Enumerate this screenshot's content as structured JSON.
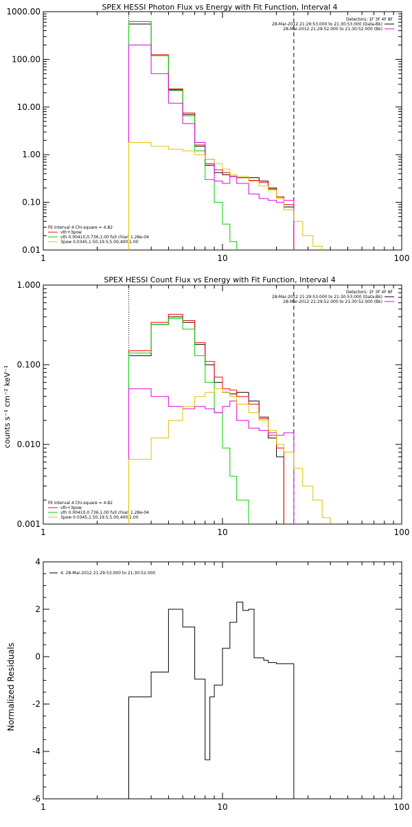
{
  "colors": {
    "black": "#000000",
    "red": "#ff0000",
    "green": "#00d000",
    "magenta": "#e000e0",
    "yellow": "#e0c000",
    "orange": "#ff8000"
  },
  "chart_data": [
    {
      "type": "line",
      "step": true,
      "title": "SPEX HESSI Photon Flux vs Energy with Fit Function, Interval 4",
      "xscale": "log",
      "yscale": "log",
      "xlim": [
        1,
        100
      ],
      "ylim": [
        0.01,
        1000
      ],
      "xticks": [
        {
          "v": 1,
          "label": "1"
        },
        {
          "v": 10,
          "label": "10"
        },
        {
          "v": 100,
          "label": "100"
        }
      ],
      "yticks": [
        {
          "v": 0.01,
          "label": "0.01"
        },
        {
          "v": 0.1,
          "label": "0.10"
        },
        {
          "v": 1,
          "label": "1.00"
        },
        {
          "v": 10,
          "label": "10.00"
        },
        {
          "v": 100,
          "label": "100.00"
        },
        {
          "v": 1000,
          "label": "1000.00"
        }
      ],
      "vlines": [
        {
          "x": 3,
          "style": "dotted"
        },
        {
          "x": 25,
          "style": "dashed"
        }
      ],
      "edges": [
        3,
        4,
        5,
        6,
        7,
        8,
        9,
        10,
        11,
        12,
        14,
        16,
        18,
        20,
        22,
        25,
        28,
        32,
        36,
        40
      ],
      "top_legend": {
        "header": "Detectors: 1F 3F 4F 8F",
        "entries": [
          {
            "text": "28-Mar-2012 21:29:53.000 to 21:30:53.000 (Data-Bk)",
            "color": "#000000"
          },
          {
            "text": "28-Mar-2012 21:29:52.000 to 21:30:52.000 (Bk)",
            "color": "#e000e0"
          }
        ]
      },
      "bottom_legend": {
        "header": "Fit Interval 4   Chi-square = 4.82",
        "entries": [
          {
            "text": "vth+3pow",
            "color": "#ff0000"
          },
          {
            "text": "vth 0.00410,0.736,1.00   full chian 1.28e-04",
            "color": "#00d000"
          },
          {
            "text": "3pow 0.0345,1.50,19.5,5.00,400,1.00",
            "color": "#e0c000"
          }
        ]
      },
      "series": [
        {
          "color": "#000000",
          "values": [
            550,
            120,
            23,
            7,
            1.5,
            0.6,
            0.42,
            0.38,
            0.35,
            0.33,
            0.33,
            0.28,
            0.2,
            0.13,
            0.08,
            null,
            null,
            null,
            null
          ]
        },
        {
          "color": "#ff0000",
          "values": [
            620,
            125,
            24,
            7.5,
            1.6,
            0.65,
            0.48,
            0.42,
            0.35,
            0.33,
            0.29,
            0.26,
            0.19,
            0.13,
            0.09,
            null,
            null,
            null,
            null
          ]
        },
        {
          "color": "#00d000",
          "values": [
            620,
            120,
            22,
            6.5,
            1.2,
            0.3,
            0.1,
            0.035,
            0.015,
            null,
            null,
            null,
            null,
            null,
            null,
            null,
            null,
            null,
            null
          ]
        },
        {
          "color": "#e000e0",
          "values": [
            200,
            50,
            12,
            4.5,
            1.8,
            0.8,
            0.28,
            0.25,
            0.35,
            0.25,
            0.15,
            0.12,
            0.11,
            0.1,
            0.11,
            null,
            null,
            null,
            null
          ]
        },
        {
          "color": "#e0c000",
          "values": [
            1.8,
            1.5,
            1.3,
            1.2,
            1.0,
            0.8,
            0.65,
            0.5,
            0.38,
            0.35,
            0.28,
            0.22,
            0.18,
            0.12,
            0.07,
            0.04,
            0.02,
            0.012,
            null
          ]
        }
      ]
    },
    {
      "type": "line",
      "step": true,
      "title": "SPEX HESSI Count Flux vs Energy with Fit Function, Interval 4",
      "ylabel": "counts s⁻¹ cm⁻² keV⁻¹",
      "xscale": "log",
      "yscale": "log",
      "xlim": [
        1,
        100
      ],
      "ylim": [
        0.001,
        1
      ],
      "xticks": [
        {
          "v": 1,
          "label": "1"
        },
        {
          "v": 10,
          "label": "10"
        },
        {
          "v": 100,
          "label": "100"
        }
      ],
      "yticks": [
        {
          "v": 0.001,
          "label": "0.001"
        },
        {
          "v": 0.01,
          "label": "0.010"
        },
        {
          "v": 0.1,
          "label": "0.100"
        },
        {
          "v": 1,
          "label": "1.000"
        }
      ],
      "vlines": [
        {
          "x": 3,
          "style": "dotted"
        },
        {
          "x": 25,
          "style": "dashed"
        }
      ],
      "edges": [
        3,
        4,
        5,
        6,
        7,
        8,
        9,
        10,
        11,
        12,
        14,
        16,
        18,
        20,
        22,
        25,
        28,
        32,
        36,
        40
      ],
      "top_legend": {
        "header": "Detectors: 1F 3F 4F 8F",
        "entries": [
          {
            "text": "28-Mar-2012 21:29:53.000 to 21:30:53.000 (Data-Bk)",
            "color": "#000000"
          },
          {
            "text": "28-Mar-2012 21:29:52.000 to 21:30:52.000 (Bk)",
            "color": "#e000e0"
          }
        ]
      },
      "bottom_legend": {
        "header": "Fit Interval 4   Chi-square = 4.82",
        "entries": [
          {
            "text": "vth+3pow",
            "color": "#ff0000"
          },
          {
            "text": "vth 0.00410,0.736,1.00   full chian 1.28e-04",
            "color": "#00d000"
          },
          {
            "text": "3pow 0.0345,1.50,19.5,5.00,400,1.00",
            "color": "#e0c000"
          }
        ]
      },
      "series": [
        {
          "color": "#000000",
          "values": [
            0.13,
            0.32,
            0.4,
            0.34,
            0.18,
            0.1,
            0.06,
            0.045,
            0.043,
            0.045,
            0.035,
            0.022,
            0.012,
            0.007,
            null,
            null,
            null,
            null,
            null
          ]
        },
        {
          "color": "#ff0000",
          "values": [
            0.15,
            0.34,
            0.43,
            0.36,
            0.19,
            0.11,
            0.07,
            0.05,
            0.048,
            0.04,
            0.032,
            0.021,
            0.013,
            0.009,
            null,
            null,
            null,
            null,
            null
          ]
        },
        {
          "color": "#00d000",
          "values": [
            0.14,
            0.32,
            0.38,
            0.28,
            0.13,
            0.06,
            0.025,
            0.009,
            0.004,
            0.002,
            null,
            null,
            null,
            null,
            null,
            null,
            null,
            null,
            null
          ]
        },
        {
          "color": "#e000e0",
          "values": [
            0.05,
            0.04,
            0.03,
            0.028,
            0.03,
            0.028,
            0.025,
            0.03,
            0.035,
            0.02,
            0.016,
            0.015,
            0.014,
            0.013,
            0.014,
            null,
            null,
            null,
            null
          ]
        },
        {
          "color": "#e0c000",
          "values": [
            0.0065,
            0.012,
            0.02,
            0.03,
            0.04,
            0.045,
            0.05,
            0.045,
            0.04,
            0.032,
            0.025,
            0.02,
            0.015,
            0.01,
            0.008,
            0.005,
            0.003,
            0.002,
            0.0012
          ]
        }
      ]
    },
    {
      "type": "line",
      "step": true,
      "ylabel": "Normalized Residuals",
      "xscale": "log",
      "yscale": "linear",
      "xlim": [
        1,
        100
      ],
      "ylim": [
        -6,
        4
      ],
      "xticks": [
        {
          "v": 1,
          "label": "1"
        },
        {
          "v": 10,
          "label": "10"
        },
        {
          "v": 100,
          "label": "100"
        }
      ],
      "yticks": [
        {
          "v": -6,
          "label": "-6"
        },
        {
          "v": -4,
          "label": "-4"
        },
        {
          "v": -2,
          "label": "-2"
        },
        {
          "v": 0,
          "label": "0"
        },
        {
          "v": 2,
          "label": "2"
        },
        {
          "v": 4,
          "label": "4"
        }
      ],
      "top_legend": {
        "header": "",
        "entries": [
          {
            "text": "4. 28-Mar-2012 21:29:53.000 to 21:30:52.000",
            "color": "#000000"
          }
        ]
      },
      "edges": [
        3,
        4,
        5,
        6,
        7,
        8,
        8.5,
        9,
        10,
        11,
        12,
        13,
        14,
        15,
        17,
        18,
        20,
        22,
        25
      ],
      "series": [
        {
          "color": "#000000",
          "dropStart": true,
          "dropEnd": true,
          "values": [
            -1.7,
            -0.65,
            2.0,
            1.25,
            -0.95,
            -4.35,
            -1.7,
            -1.2,
            0.35,
            1.45,
            2.3,
            1.95,
            2.0,
            -0.05,
            -0.15,
            -0.25,
            -0.3,
            -0.3
          ]
        }
      ]
    }
  ]
}
